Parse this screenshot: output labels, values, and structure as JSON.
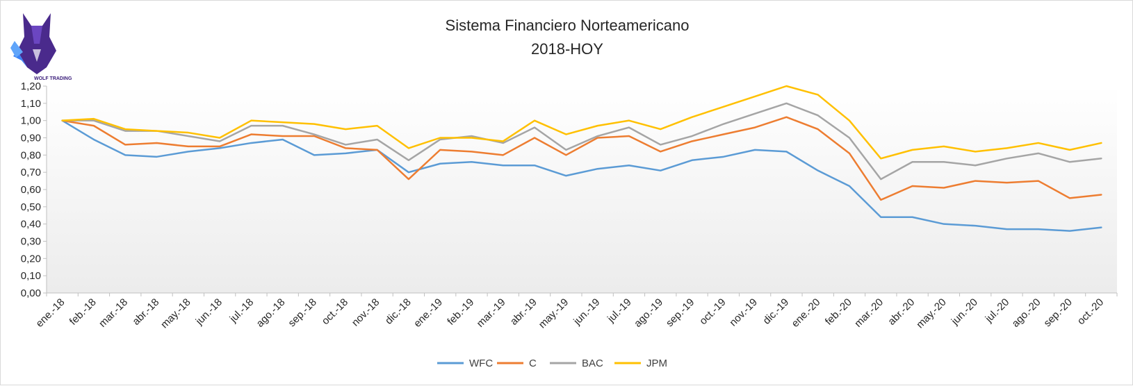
{
  "chart_data": {
    "type": "line",
    "title": "Sistema Financiero Norteamericano",
    "subtitle": "2018-HOY",
    "xlabel": "",
    "ylabel": "",
    "ylim": [
      0,
      1.2
    ],
    "yticks": [
      "0,00",
      "0,10",
      "0,20",
      "0,30",
      "0,40",
      "0,50",
      "0,60",
      "0,70",
      "0,80",
      "0,90",
      "1,00",
      "1,10",
      "1,20"
    ],
    "categories": [
      "ene.-18",
      "feb.-18",
      "mar.-18",
      "abr.-18",
      "may.-18",
      "jun.-18",
      "jul.-18",
      "ago.-18",
      "sep.-18",
      "oct.-18",
      "nov.-18",
      "dic.-18",
      "ene.-19",
      "feb.-19",
      "mar.-19",
      "abr.-19",
      "may.-19",
      "jun.-19",
      "jul.-19",
      "ago.-19",
      "sep.-19",
      "oct.-19",
      "nov.-19",
      "dic.-19",
      "ene.-20",
      "feb.-20",
      "mar.-20",
      "abr.-20",
      "may.-20",
      "jun.-20",
      "jul.-20",
      "ago.-20",
      "sep.-20",
      "oct.-20"
    ],
    "legend_position": "bottom",
    "grid": false,
    "series": [
      {
        "name": "WFC",
        "color": "#5b9bd5",
        "values": [
          1.0,
          0.89,
          0.8,
          0.79,
          0.82,
          0.84,
          0.87,
          0.89,
          0.8,
          0.81,
          0.83,
          0.7,
          0.75,
          0.76,
          0.74,
          0.74,
          0.68,
          0.72,
          0.74,
          0.71,
          0.77,
          0.79,
          0.83,
          0.82,
          0.71,
          0.62,
          0.44,
          0.44,
          0.4,
          0.39,
          0.37,
          0.37,
          0.36,
          0.38
        ]
      },
      {
        "name": "C",
        "color": "#ed7d31",
        "values": [
          1.0,
          0.97,
          0.86,
          0.87,
          0.85,
          0.85,
          0.92,
          0.91,
          0.91,
          0.84,
          0.83,
          0.66,
          0.83,
          0.82,
          0.8,
          0.9,
          0.8,
          0.9,
          0.91,
          0.82,
          0.88,
          0.92,
          0.96,
          1.02,
          0.95,
          0.81,
          0.54,
          0.62,
          0.61,
          0.65,
          0.64,
          0.65,
          0.55,
          0.57
        ]
      },
      {
        "name": "BAC",
        "color": "#a5a5a5",
        "values": [
          1.0,
          1.0,
          0.94,
          0.94,
          0.91,
          0.88,
          0.97,
          0.97,
          0.92,
          0.86,
          0.89,
          0.77,
          0.89,
          0.91,
          0.87,
          0.96,
          0.83,
          0.91,
          0.96,
          0.86,
          0.91,
          0.98,
          1.04,
          1.1,
          1.03,
          0.9,
          0.66,
          0.76,
          0.76,
          0.74,
          0.78,
          0.81,
          0.76,
          0.78
        ]
      },
      {
        "name": "JPM",
        "color": "#ffc000",
        "values": [
          1.0,
          1.01,
          0.95,
          0.94,
          0.93,
          0.9,
          1.0,
          0.99,
          0.98,
          0.95,
          0.97,
          0.84,
          0.9,
          0.9,
          0.88,
          1.0,
          0.92,
          0.97,
          1.0,
          0.95,
          1.02,
          1.08,
          1.14,
          1.2,
          1.15,
          1.0,
          0.78,
          0.83,
          0.85,
          0.82,
          0.84,
          0.87,
          0.83,
          0.87
        ]
      }
    ]
  },
  "logo": {
    "text": "WOLF TRADING"
  }
}
